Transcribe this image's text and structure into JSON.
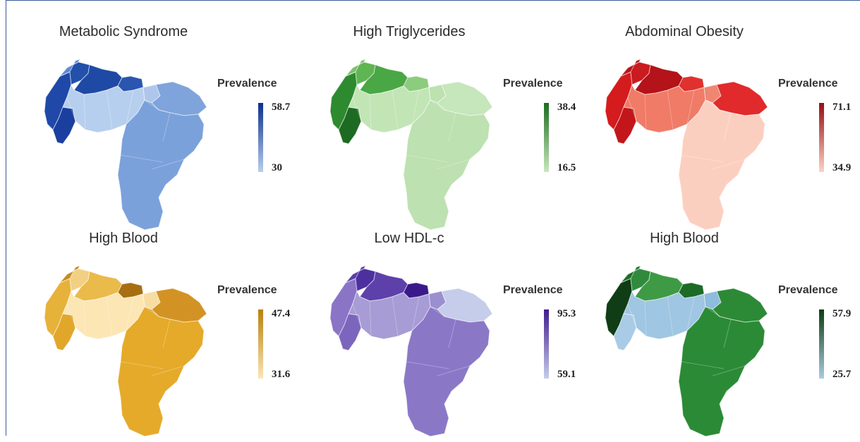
{
  "legend_title": "Prevalence",
  "panels": [
    {
      "title": "Metabolic Syndrome",
      "max": "58.7",
      "min": "30",
      "colors": {
        "high": "#0d2f8a",
        "low": "#b7cfee"
      },
      "regions": {
        "w1": "#1f48a8",
        "w2": "#1a3f9e",
        "n1": "#2250ab",
        "n2": "#1e4aa6",
        "n3": "#2a56b0",
        "c1": "#b7cfee",
        "c2": "#aec6ea",
        "e1": "#7fa4dc",
        "s1": "#7ba1db",
        "far": "#5f8bd0"
      }
    },
    {
      "title": "High Triglycerides",
      "max": "38.4",
      "min": "16.5",
      "colors": {
        "high": "#1c6b1f",
        "low": "#c9e8bd"
      },
      "regions": {
        "w1": "#2d8a2f",
        "w2": "#1d6a22",
        "n1": "#5fb552",
        "n2": "#4aa745",
        "n3": "#8ccc7d",
        "c1": "#c2e5b6",
        "c2": "#bde2b0",
        "e1": "#c6e6bb",
        "s1": "#bde1b1",
        "far": "#7cc16d"
      }
    },
    {
      "title": "Abdominal Obesity",
      "max": "71.1",
      "min": "34.9",
      "colors": {
        "high": "#9a0d10",
        "low": "#fbd3c4"
      },
      "regions": {
        "w1": "#d41b1e",
        "w2": "#c2161a",
        "n1": "#c91b20",
        "n2": "#b31319",
        "n3": "#e0312e",
        "c1": "#f07b67",
        "c2": "#ef8671",
        "e1": "#e02a2b",
        "s1": "#fbcfc0",
        "far": "#b8151a"
      }
    },
    {
      "title": "High Blood",
      "max": "47.4",
      "min": "31.6",
      "colors": {
        "high": "#b8800f",
        "low": "#fbe6b4"
      },
      "regions": {
        "w1": "#e7b23a",
        "w2": "#e0a72a",
        "n1": "#f2d083",
        "n2": "#eaba4a",
        "n3": "#a86e12",
        "c1": "#fbe6b4",
        "c2": "#f8dda2",
        "e1": "#d39324",
        "s1": "#e5aa2a",
        "far": "#c98b1c"
      }
    },
    {
      "title": "Low HDL-c",
      "max": "95.3",
      "min": "59.1",
      "colors": {
        "high": "#3f1d8f",
        "low": "#c6cdea"
      },
      "regions": {
        "w1": "#8a74c6",
        "w2": "#7c66bd",
        "n1": "#4e2fa0",
        "n2": "#5d40aa",
        "n3": "#3a1a8a",
        "c1": "#a79cd5",
        "c2": "#9c8fd0",
        "e1": "#c6cdea",
        "s1": "#8a78c7",
        "far": "#5b3da8"
      }
    },
    {
      "title": "High Blood",
      "max": "57.9",
      "min": "25.7",
      "colors": {
        "high": "#0d3d12",
        "low": "#a9cbe5"
      },
      "regions": {
        "w1": "#103d15",
        "w2": "#a9cbe5",
        "n1": "#2f8b3b",
        "n2": "#3e9a45",
        "n3": "#1d6b27",
        "c1": "#9fc6e2",
        "c2": "#8dbcdd",
        "e1": "#2c8a37",
        "s1": "#2b8a36",
        "far": "#1c6f26"
      }
    }
  ]
}
